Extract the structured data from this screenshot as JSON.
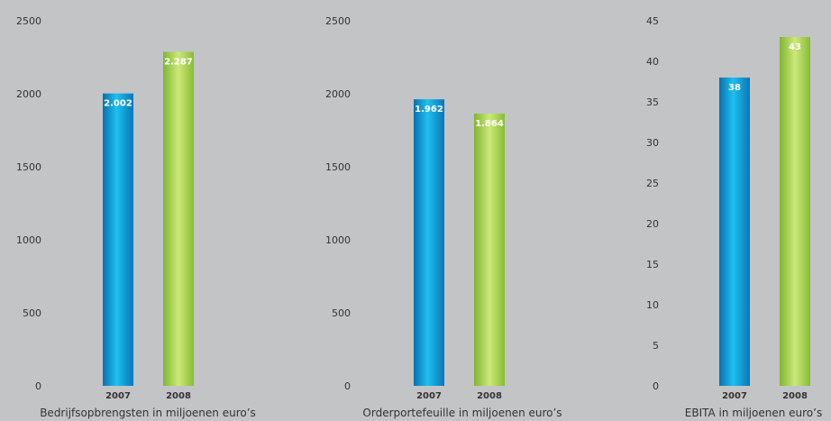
{
  "chart_data": [
    {
      "type": "bar",
      "categories": [
        "2007",
        "2008"
      ],
      "values": [
        2002,
        2287
      ],
      "data_labels": [
        "2.002",
        "2.287"
      ],
      "yticks": [
        "0",
        "500",
        "1000",
        "1500",
        "2000",
        "2500"
      ],
      "ylim": [
        0,
        2500
      ],
      "xlabel": "Bedrijfsopbrengsten in miljoenen euro’s",
      "grid": false,
      "colors": [
        "#0a9fd8",
        "#8cc63f"
      ]
    },
    {
      "type": "bar",
      "categories": [
        "2007",
        "2008"
      ],
      "values": [
        1962,
        1864
      ],
      "data_labels": [
        "1.962",
        "1.864"
      ],
      "yticks": [
        "0",
        "500",
        "1000",
        "1500",
        "2000",
        "2500"
      ],
      "ylim": [
        0,
        2500
      ],
      "xlabel": "Orderportefeuille in miljoenen euro’s",
      "grid": false,
      "colors": [
        "#0a9fd8",
        "#8cc63f"
      ]
    },
    {
      "type": "bar",
      "categories": [
        "2007",
        "2008"
      ],
      "values": [
        38,
        43
      ],
      "data_labels": [
        "38",
        "43"
      ],
      "yticks": [
        "0",
        "5",
        "10",
        "15",
        "20",
        "25",
        "30",
        "35",
        "40",
        "45"
      ],
      "ylim": [
        0,
        45
      ],
      "xlabel": "EBITA in miljoenen euro’s",
      "grid": false,
      "colors": [
        "#0a9fd8",
        "#8cc63f"
      ]
    }
  ]
}
